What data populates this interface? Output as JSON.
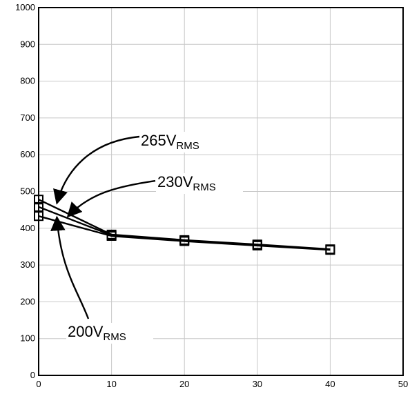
{
  "chart_data": {
    "type": "line",
    "title": "",
    "xlabel": "",
    "ylabel": "",
    "xlim": [
      0,
      50
    ],
    "ylim": [
      0,
      1000
    ],
    "xticks": [
      0,
      10,
      20,
      30,
      40,
      50
    ],
    "yticks": [
      0,
      100,
      200,
      300,
      400,
      500,
      600,
      700,
      800,
      900,
      1000
    ],
    "grid": true,
    "legend": "none",
    "series": [
      {
        "name": "265V",
        "sub": "RMS",
        "x": [
          0,
          10,
          20,
          30,
          40
        ],
        "y": [
          478,
          383,
          368,
          356,
          343
        ]
      },
      {
        "name": "230V",
        "sub": "RMS",
        "x": [
          0,
          10,
          20,
          30,
          40
        ],
        "y": [
          458,
          381,
          367,
          355,
          342
        ]
      },
      {
        "name": "200V",
        "sub": "RMS",
        "x": [
          0,
          10,
          20,
          30,
          40
        ],
        "y": [
          433,
          379,
          365,
          353,
          341
        ]
      }
    ],
    "annotations": [
      {
        "series": 0,
        "text": "265V",
        "sub": "RMS",
        "tip": [
          2.5,
          468
        ]
      },
      {
        "series": 1,
        "text": "230V",
        "sub": "RMS",
        "tip": [
          4.0,
          432
        ]
      },
      {
        "series": 2,
        "text": "200V",
        "sub": "RMS",
        "tip": [
          2.5,
          430
        ]
      }
    ]
  }
}
